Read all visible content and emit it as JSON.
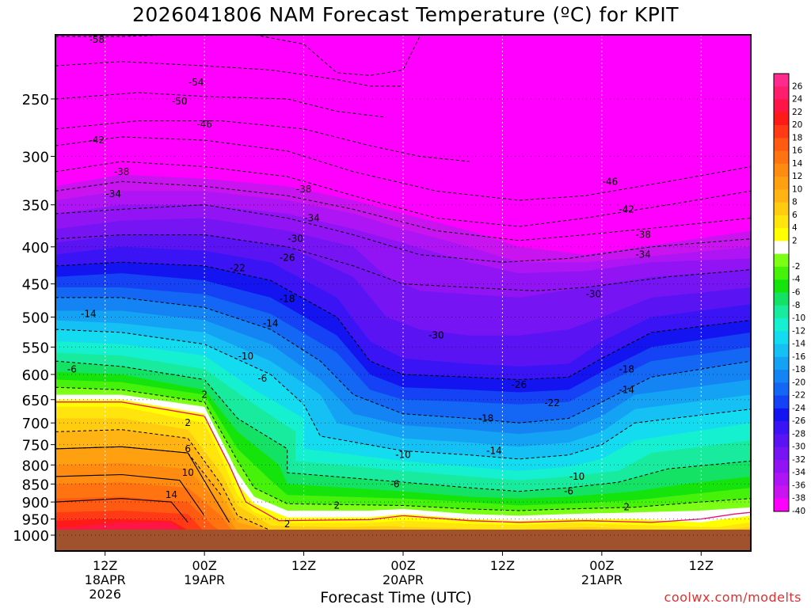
{
  "title": "2026041806 NAM Forecast Temperature (ºC) for KPIT",
  "xlabel": "Forecast Time (UTC)",
  "credit": "coolwx.com/modelts",
  "chart_data": {
    "type": "heatmap",
    "title": "2026041806 NAM Forecast Temperature (ºC) for KPIT",
    "xlabel": "Forecast Time (UTC)",
    "ylabel": "",
    "y_scale": "log-pressure (hPa), inverted",
    "ylim": [
      1000,
      200
    ],
    "y_ticks": [
      250,
      300,
      350,
      400,
      450,
      500,
      550,
      600,
      650,
      700,
      750,
      800,
      850,
      900,
      950,
      1000
    ],
    "xlim_hours": [
      6,
      90
    ],
    "x_ticks": [
      {
        "hour": 12,
        "label": "12Z",
        "sub1": "18APR",
        "sub2": "2026"
      },
      {
        "hour": 24,
        "label": "00Z",
        "sub1": "19APR",
        "sub2": ""
      },
      {
        "hour": 36,
        "label": "12Z",
        "sub1": "",
        "sub2": ""
      },
      {
        "hour": 48,
        "label": "00Z",
        "sub1": "20APR",
        "sub2": ""
      },
      {
        "hour": 60,
        "label": "12Z",
        "sub1": "",
        "sub2": ""
      },
      {
        "hour": 72,
        "label": "00Z",
        "sub1": "21APR",
        "sub2": ""
      },
      {
        "hour": 84,
        "label": "12Z",
        "sub1": "",
        "sub2": ""
      }
    ],
    "grid": true,
    "legend_position": "right",
    "colorbar": [
      {
        "label": "26",
        "color": "#ff2a8e"
      },
      {
        "label": "24",
        "color": "#ff1e6e"
      },
      {
        "label": "22",
        "color": "#ff1446"
      },
      {
        "label": "20",
        "color": "#ff1a1a"
      },
      {
        "label": "18",
        "color": "#ff3a14"
      },
      {
        "label": "16",
        "color": "#ff5a12"
      },
      {
        "label": "14",
        "color": "#ff7410"
      },
      {
        "label": "12",
        "color": "#ff8c10"
      },
      {
        "label": "10",
        "color": "#ffa010"
      },
      {
        "label": "8",
        "color": "#ffb414"
      },
      {
        "label": "6",
        "color": "#ffcc10"
      },
      {
        "label": "4",
        "color": "#ffe40e"
      },
      {
        "label": "2",
        "color": "#ffff00"
      },
      {
        "label": "",
        "color": "#ffffff"
      },
      {
        "label": "-2",
        "color": "#7cff14"
      },
      {
        "label": "-4",
        "color": "#46f20a"
      },
      {
        "label": "-6",
        "color": "#14e40c"
      },
      {
        "label": "-8",
        "color": "#14e264"
      },
      {
        "label": "-10",
        "color": "#18ea9e"
      },
      {
        "label": "-12",
        "color": "#14f0d0"
      },
      {
        "label": "-14",
        "color": "#14dcf0"
      },
      {
        "label": "-16",
        "color": "#14c0f4"
      },
      {
        "label": "-18",
        "color": "#14a2f4"
      },
      {
        "label": "-20",
        "color": "#1484f4"
      },
      {
        "label": "-22",
        "color": "#1466f4"
      },
      {
        "label": "-24",
        "color": "#1442f4"
      },
      {
        "label": "-26",
        "color": "#1414f0"
      },
      {
        "label": "-28",
        "color": "#3a14f4"
      },
      {
        "label": "-30",
        "color": "#5a14f4"
      },
      {
        "label": "-32",
        "color": "#7614f4"
      },
      {
        "label": "-34",
        "color": "#9214f4"
      },
      {
        "label": "-36",
        "color": "#ae14f4"
      },
      {
        "label": "-38",
        "color": "#ca14f0"
      },
      {
        "label": "-40",
        "color": "#ff00ff"
      }
    ],
    "contour_labels": [
      {
        "text": "-58",
        "hour": 11,
        "p": 207
      },
      {
        "text": "-54",
        "hour": 23,
        "p": 237
      },
      {
        "text": "-50",
        "hour": 21,
        "p": 252
      },
      {
        "text": "-46",
        "hour": 24,
        "p": 271
      },
      {
        "text": "-42",
        "hour": 11,
        "p": 285
      },
      {
        "text": "-38",
        "hour": 14,
        "p": 315
      },
      {
        "text": "-34",
        "hour": 13,
        "p": 338
      },
      {
        "text": "-38",
        "hour": 36,
        "p": 333
      },
      {
        "text": "-34",
        "hour": 37,
        "p": 365
      },
      {
        "text": "-30",
        "hour": 35,
        "p": 390
      },
      {
        "text": "-26",
        "hour": 34,
        "p": 414
      },
      {
        "text": "-22",
        "hour": 28,
        "p": 428
      },
      {
        "text": "-18",
        "hour": 34,
        "p": 472
      },
      {
        "text": "-14",
        "hour": 10,
        "p": 495
      },
      {
        "text": "-14",
        "hour": 32,
        "p": 510
      },
      {
        "text": "-10",
        "hour": 29,
        "p": 566
      },
      {
        "text": "-6",
        "hour": 8,
        "p": 590
      },
      {
        "text": "-6",
        "hour": 31,
        "p": 608
      },
      {
        "text": "2",
        "hour": 24,
        "p": 640
      },
      {
        "text": "2",
        "hour": 22,
        "p": 700
      },
      {
        "text": "6",
        "hour": 22,
        "p": 760
      },
      {
        "text": "10",
        "hour": 22,
        "p": 820
      },
      {
        "text": "14",
        "hour": 20,
        "p": 880
      },
      {
        "text": "2",
        "hour": 40,
        "p": 910
      },
      {
        "text": "2",
        "hour": 34,
        "p": 965
      },
      {
        "text": "-30",
        "hour": 52,
        "p": 530
      },
      {
        "text": "-26",
        "hour": 62,
        "p": 620
      },
      {
        "text": "-22",
        "hour": 66,
        "p": 657
      },
      {
        "text": "-18",
        "hour": 58,
        "p": 690
      },
      {
        "text": "-14",
        "hour": 59,
        "p": 765
      },
      {
        "text": "-10",
        "hour": 48,
        "p": 775
      },
      {
        "text": "-6",
        "hour": 47,
        "p": 850
      },
      {
        "text": "-10",
        "hour": 69,
        "p": 830
      },
      {
        "text": "-6",
        "hour": 68,
        "p": 870
      },
      {
        "text": "2",
        "hour": 75,
        "p": 915
      },
      {
        "text": "-46",
        "hour": 73,
        "p": 325
      },
      {
        "text": "-42",
        "hour": 75,
        "p": 355
      },
      {
        "text": "-38",
        "hour": 77,
        "p": 385
      },
      {
        "text": "-34",
        "hour": 77,
        "p": 410
      },
      {
        "text": "-30",
        "hour": 71,
        "p": 465
      },
      {
        "text": "-18",
        "hour": 75,
        "p": 590
      },
      {
        "text": "-14",
        "hour": 75,
        "p": 630
      }
    ]
  }
}
